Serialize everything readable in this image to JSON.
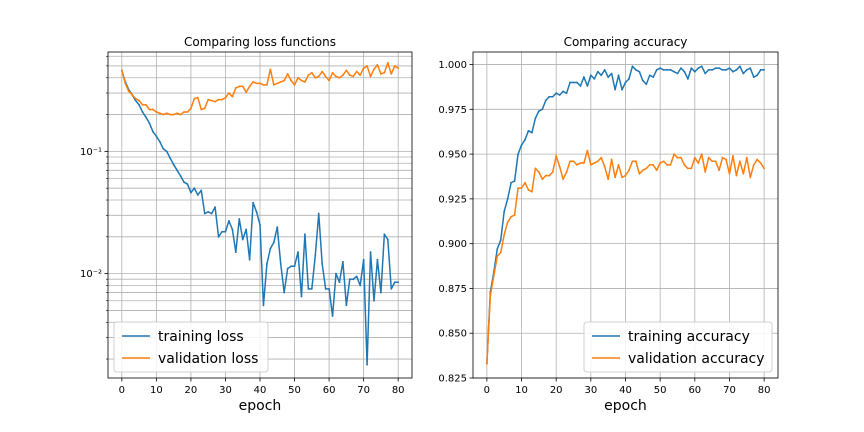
{
  "chart_data": [
    {
      "type": "line",
      "title": "Comparing loss functions",
      "xlabel": "epoch",
      "ylabel": "",
      "yscale": "log",
      "xlim": [
        -4,
        84
      ],
      "ylim": [
        0.0014,
        0.65
      ],
      "xticks": [
        0,
        10,
        20,
        30,
        40,
        50,
        60,
        70,
        80
      ],
      "yticks": [
        {
          "value": 0.1,
          "label": "10⁻¹"
        },
        {
          "value": 0.01,
          "label": "10⁻²"
        }
      ],
      "grid": true,
      "legend": "lower left",
      "x": [
        0,
        1,
        2,
        3,
        4,
        5,
        6,
        7,
        8,
        9,
        10,
        11,
        12,
        13,
        14,
        15,
        16,
        17,
        18,
        19,
        20,
        21,
        22,
        23,
        24,
        25,
        26,
        27,
        28,
        29,
        30,
        31,
        32,
        33,
        34,
        35,
        36,
        37,
        38,
        39,
        40,
        41,
        42,
        43,
        44,
        45,
        46,
        47,
        48,
        49,
        50,
        51,
        52,
        53,
        54,
        55,
        56,
        57,
        58,
        59,
        60,
        61,
        62,
        63,
        64,
        65,
        66,
        67,
        68,
        69,
        70,
        71,
        72,
        73,
        74,
        75,
        76,
        77,
        78,
        79,
        80
      ],
      "series": [
        {
          "name": "training loss",
          "color": "#1f77b4",
          "values": [
            0.46,
            0.37,
            0.32,
            0.29,
            0.26,
            0.24,
            0.21,
            0.19,
            0.17,
            0.145,
            0.133,
            0.12,
            0.105,
            0.1,
            0.088,
            0.078,
            0.07,
            0.063,
            0.056,
            0.054,
            0.046,
            0.05,
            0.044,
            0.048,
            0.031,
            0.032,
            0.031,
            0.035,
            0.02,
            0.022,
            0.022,
            0.027,
            0.023,
            0.015,
            0.028,
            0.019,
            0.023,
            0.013,
            0.038,
            0.032,
            0.025,
            0.0055,
            0.012,
            0.016,
            0.018,
            0.024,
            0.012,
            0.007,
            0.011,
            0.0115,
            0.0115,
            0.015,
            0.0065,
            0.021,
            0.0075,
            0.0075,
            0.014,
            0.031,
            0.012,
            0.0075,
            0.0075,
            0.0045,
            0.01,
            0.0085,
            0.0125,
            0.0055,
            0.009,
            0.009,
            0.0095,
            0.008,
            0.013,
            0.0018,
            0.015,
            0.006,
            0.013,
            0.007,
            0.021,
            0.019,
            0.0075,
            0.0085,
            0.0085
          ]
        },
        {
          "name": "validation loss",
          "color": "#ff7f0e",
          "values": [
            0.46,
            0.36,
            0.31,
            0.29,
            0.27,
            0.26,
            0.24,
            0.24,
            0.22,
            0.22,
            0.21,
            0.205,
            0.2,
            0.205,
            0.2,
            0.2,
            0.205,
            0.2,
            0.21,
            0.21,
            0.225,
            0.27,
            0.275,
            0.22,
            0.225,
            0.265,
            0.26,
            0.255,
            0.265,
            0.265,
            0.275,
            0.3,
            0.28,
            0.33,
            0.34,
            0.34,
            0.305,
            0.34,
            0.37,
            0.36,
            0.36,
            0.35,
            0.35,
            0.47,
            0.35,
            0.36,
            0.37,
            0.38,
            0.43,
            0.38,
            0.35,
            0.4,
            0.38,
            0.37,
            0.42,
            0.44,
            0.4,
            0.41,
            0.45,
            0.41,
            0.38,
            0.44,
            0.41,
            0.4,
            0.42,
            0.46,
            0.42,
            0.41,
            0.45,
            0.42,
            0.48,
            0.5,
            0.41,
            0.47,
            0.51,
            0.43,
            0.44,
            0.53,
            0.43,
            0.5,
            0.48
          ]
        }
      ]
    },
    {
      "type": "line",
      "title": "Comparing accuracy",
      "xlabel": "epoch",
      "ylabel": "",
      "xlim": [
        -4,
        84
      ],
      "ylim": [
        0.825,
        1.007
      ],
      "xticks": [
        0,
        10,
        20,
        30,
        40,
        50,
        60,
        70,
        80
      ],
      "yticks": [
        {
          "value": 0.825,
          "label": "0.825"
        },
        {
          "value": 0.85,
          "label": "0.850"
        },
        {
          "value": 0.875,
          "label": "0.875"
        },
        {
          "value": 0.9,
          "label": "0.900"
        },
        {
          "value": 0.925,
          "label": "0.925"
        },
        {
          "value": 0.95,
          "label": "0.950"
        },
        {
          "value": 0.975,
          "label": "0.975"
        },
        {
          "value": 1.0,
          "label": "1.000"
        }
      ],
      "grid": true,
      "legend": "lower right",
      "x": [
        0,
        1,
        2,
        3,
        4,
        5,
        6,
        7,
        8,
        9,
        10,
        11,
        12,
        13,
        14,
        15,
        16,
        17,
        18,
        19,
        20,
        21,
        22,
        23,
        24,
        25,
        26,
        27,
        28,
        29,
        30,
        31,
        32,
        33,
        34,
        35,
        36,
        37,
        38,
        39,
        40,
        41,
        42,
        43,
        44,
        45,
        46,
        47,
        48,
        49,
        50,
        51,
        52,
        53,
        54,
        55,
        56,
        57,
        58,
        59,
        60,
        61,
        62,
        63,
        64,
        65,
        66,
        67,
        68,
        69,
        70,
        71,
        72,
        73,
        74,
        75,
        76,
        77,
        78,
        79,
        80
      ],
      "series": [
        {
          "name": "training accuracy",
          "color": "#1f77b4",
          "values": [
            0.833,
            0.873,
            0.884,
            0.897,
            0.902,
            0.918,
            0.925,
            0.934,
            0.935,
            0.95,
            0.955,
            0.958,
            0.963,
            0.962,
            0.97,
            0.974,
            0.975,
            0.98,
            0.982,
            0.982,
            0.984,
            0.983,
            0.985,
            0.984,
            0.99,
            0.99,
            0.99,
            0.988,
            0.993,
            0.988,
            0.994,
            0.992,
            0.996,
            0.994,
            0.997,
            0.993,
            0.995,
            0.986,
            0.994,
            0.986,
            0.99,
            0.992,
            0.999,
            0.997,
            0.996,
            0.991,
            0.989,
            0.994,
            0.993,
            0.997,
            0.998,
            0.997,
            0.997,
            0.997,
            0.996,
            0.995,
            0.998,
            0.996,
            0.992,
            0.998,
            0.996,
            0.998,
            0.999,
            0.995,
            0.997,
            0.997,
            0.998,
            0.998,
            0.997,
            0.997,
            0.998,
            0.996,
            0.997,
            0.999,
            0.995,
            0.997,
            0.998,
            0.993,
            0.994,
            0.997,
            0.997
          ]
        },
        {
          "name": "validation accuracy",
          "color": "#ff7f0e",
          "values": [
            0.833,
            0.871,
            0.882,
            0.893,
            0.895,
            0.905,
            0.912,
            0.915,
            0.916,
            0.931,
            0.931,
            0.934,
            0.93,
            0.929,
            0.942,
            0.94,
            0.936,
            0.938,
            0.938,
            0.94,
            0.949,
            0.943,
            0.936,
            0.94,
            0.946,
            0.946,
            0.944,
            0.945,
            0.945,
            0.952,
            0.944,
            0.945,
            0.946,
            0.948,
            0.943,
            0.936,
            0.947,
            0.937,
            0.944,
            0.937,
            0.938,
            0.941,
            0.946,
            0.946,
            0.939,
            0.941,
            0.942,
            0.944,
            0.944,
            0.941,
            0.945,
            0.946,
            0.944,
            0.944,
            0.95,
            0.948,
            0.948,
            0.944,
            0.942,
            0.942,
            0.948,
            0.945,
            0.95,
            0.94,
            0.948,
            0.946,
            0.946,
            0.941,
            0.948,
            0.947,
            0.939,
            0.949,
            0.938,
            0.946,
            0.939,
            0.948,
            0.937,
            0.944,
            0.947,
            0.945,
            0.942
          ]
        }
      ]
    }
  ]
}
